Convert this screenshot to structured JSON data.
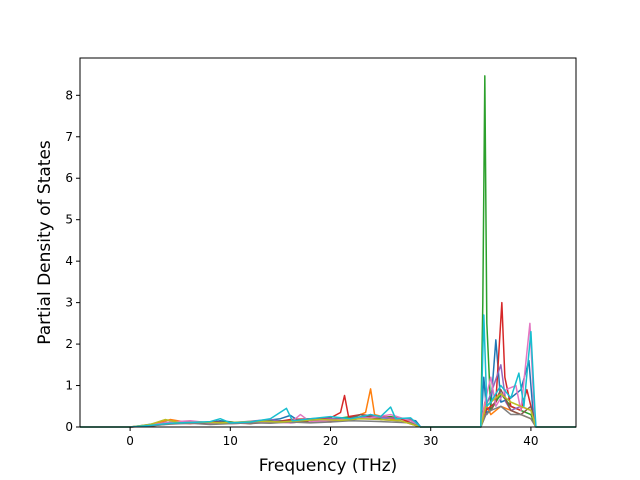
{
  "chart_data": {
    "type": "line",
    "title": "",
    "xlabel": "Frequency (THz)",
    "ylabel": "Partial Density of States",
    "xlim": [
      -5,
      44.5
    ],
    "ylim": [
      0,
      8.9
    ],
    "x_ticks": [
      0,
      10,
      20,
      30,
      40
    ],
    "y_ticks": [
      0,
      1,
      2,
      3,
      4,
      5,
      6,
      7,
      8
    ],
    "grid": false,
    "legend": "none",
    "series": [
      {
        "color": "#1f77b4",
        "points": [
          [
            -5,
            0
          ],
          [
            0,
            0
          ],
          [
            1,
            0.03
          ],
          [
            3,
            0.1
          ],
          [
            5,
            0.14
          ],
          [
            7,
            0.08
          ],
          [
            9,
            0.15
          ],
          [
            11,
            0.1
          ],
          [
            13,
            0.14
          ],
          [
            15,
            0.2
          ],
          [
            16,
            0.28
          ],
          [
            17,
            0.12
          ],
          [
            19,
            0.18
          ],
          [
            21,
            0.2
          ],
          [
            22,
            0.15
          ],
          [
            24,
            0.3
          ],
          [
            25,
            0.22
          ],
          [
            27,
            0.2
          ],
          [
            28.5,
            0.15
          ],
          [
            29,
            0
          ],
          [
            35,
            0
          ],
          [
            35.3,
            1.2
          ],
          [
            35.6,
            0.3
          ],
          [
            36,
            0.5
          ],
          [
            36.5,
            2.1
          ],
          [
            37,
            0.6
          ],
          [
            38,
            0.7
          ],
          [
            39,
            0.9
          ],
          [
            39.8,
            1.6
          ],
          [
            40.2,
            0.4
          ],
          [
            40.5,
            0
          ],
          [
            44.5,
            0
          ]
        ]
      },
      {
        "color": "#ff7f0e",
        "points": [
          [
            -5,
            0
          ],
          [
            0,
            0
          ],
          [
            2,
            0.05
          ],
          [
            4,
            0.18
          ],
          [
            6,
            0.1
          ],
          [
            8,
            0.12
          ],
          [
            10,
            0.08
          ],
          [
            12,
            0.1
          ],
          [
            14,
            0.15
          ],
          [
            16,
            0.1
          ],
          [
            18,
            0.15
          ],
          [
            20,
            0.12
          ],
          [
            22,
            0.2
          ],
          [
            23.5,
            0.35
          ],
          [
            24,
            0.92
          ],
          [
            24.4,
            0.3
          ],
          [
            26,
            0.2
          ],
          [
            28,
            0.18
          ],
          [
            29,
            0
          ],
          [
            35,
            0
          ],
          [
            35.4,
            0.6
          ],
          [
            36,
            0.3
          ],
          [
            37,
            0.5
          ],
          [
            38,
            0.4
          ],
          [
            39,
            0.3
          ],
          [
            40,
            0.2
          ],
          [
            40.5,
            0
          ],
          [
            44.5,
            0
          ]
        ]
      },
      {
        "color": "#2ca02c",
        "points": [
          [
            -5,
            0
          ],
          [
            0,
            0
          ],
          [
            2,
            0.04
          ],
          [
            4,
            0.12
          ],
          [
            6,
            0.09
          ],
          [
            8,
            0.1
          ],
          [
            10,
            0.12
          ],
          [
            12,
            0.08
          ],
          [
            14,
            0.16
          ],
          [
            16,
            0.14
          ],
          [
            18,
            0.2
          ],
          [
            20,
            0.18
          ],
          [
            22,
            0.25
          ],
          [
            24,
            0.2
          ],
          [
            26,
            0.25
          ],
          [
            28,
            0.15
          ],
          [
            29,
            0
          ],
          [
            35,
            0
          ],
          [
            35.2,
            3.0
          ],
          [
            35.4,
            8.47
          ],
          [
            35.6,
            2.5
          ],
          [
            36,
            0.4
          ],
          [
            37,
            0.8
          ],
          [
            38,
            0.5
          ],
          [
            39,
            0.4
          ],
          [
            40,
            0.3
          ],
          [
            40.5,
            0
          ],
          [
            44.5,
            0
          ]
        ]
      },
      {
        "color": "#d62728",
        "points": [
          [
            -5,
            0
          ],
          [
            0,
            0
          ],
          [
            2,
            0.03
          ],
          [
            4,
            0.1
          ],
          [
            6,
            0.08
          ],
          [
            8,
            0.12
          ],
          [
            10,
            0.1
          ],
          [
            12,
            0.12
          ],
          [
            14,
            0.1
          ],
          [
            16,
            0.18
          ],
          [
            18,
            0.2
          ],
          [
            20,
            0.22
          ],
          [
            21,
            0.35
          ],
          [
            21.4,
            0.76
          ],
          [
            21.8,
            0.25
          ],
          [
            23,
            0.3
          ],
          [
            25,
            0.25
          ],
          [
            27,
            0.2
          ],
          [
            29,
            0
          ],
          [
            35,
            0
          ],
          [
            35.5,
            0.4
          ],
          [
            36.5,
            0.6
          ],
          [
            37.1,
            3.0
          ],
          [
            37.4,
            1.2
          ],
          [
            38,
            0.5
          ],
          [
            39,
            0.4
          ],
          [
            39.6,
            0.9
          ],
          [
            40.2,
            0.3
          ],
          [
            40.5,
            0
          ],
          [
            44.5,
            0
          ]
        ]
      },
      {
        "color": "#9467bd",
        "points": [
          [
            -5,
            0
          ],
          [
            0,
            0
          ],
          [
            2,
            0.04
          ],
          [
            4,
            0.1
          ],
          [
            6,
            0.12
          ],
          [
            8,
            0.08
          ],
          [
            10,
            0.1
          ],
          [
            12,
            0.14
          ],
          [
            14,
            0.18
          ],
          [
            16,
            0.1
          ],
          [
            18,
            0.15
          ],
          [
            20,
            0.2
          ],
          [
            22,
            0.18
          ],
          [
            24,
            0.25
          ],
          [
            26,
            0.22
          ],
          [
            28,
            0.2
          ],
          [
            29,
            0
          ],
          [
            35,
            0
          ],
          [
            35.5,
            0.5
          ],
          [
            36,
            0.8
          ],
          [
            37,
            1.5
          ],
          [
            37.5,
            0.6
          ],
          [
            38,
            0.4
          ],
          [
            39,
            0.5
          ],
          [
            40,
            0.4
          ],
          [
            40.5,
            0
          ],
          [
            44.5,
            0
          ]
        ]
      },
      {
        "color": "#8c564b",
        "points": [
          [
            -5,
            0
          ],
          [
            0,
            0
          ],
          [
            2,
            0.02
          ],
          [
            4,
            0.08
          ],
          [
            6,
            0.1
          ],
          [
            8,
            0.07
          ],
          [
            10,
            0.1
          ],
          [
            12,
            0.08
          ],
          [
            14,
            0.12
          ],
          [
            16,
            0.15
          ],
          [
            18,
            0.12
          ],
          [
            20,
            0.15
          ],
          [
            22,
            0.22
          ],
          [
            23,
            0.3
          ],
          [
            25,
            0.18
          ],
          [
            27,
            0.15
          ],
          [
            29,
            0
          ],
          [
            35,
            0
          ],
          [
            35.5,
            0.3
          ],
          [
            36,
            0.4
          ],
          [
            37,
            0.9
          ],
          [
            38,
            0.4
          ],
          [
            39,
            0.3
          ],
          [
            40,
            0.5
          ],
          [
            40.5,
            0
          ],
          [
            44.5,
            0
          ]
        ]
      },
      {
        "color": "#e377c2",
        "points": [
          [
            -5,
            0
          ],
          [
            0,
            0
          ],
          [
            2,
            0.05
          ],
          [
            4,
            0.12
          ],
          [
            6,
            0.15
          ],
          [
            8,
            0.1
          ],
          [
            10,
            0.08
          ],
          [
            12,
            0.1
          ],
          [
            14,
            0.12
          ],
          [
            16,
            0.1
          ],
          [
            17,
            0.3
          ],
          [
            18,
            0.12
          ],
          [
            20,
            0.16
          ],
          [
            22,
            0.2
          ],
          [
            24,
            0.22
          ],
          [
            26,
            0.3
          ],
          [
            28,
            0.15
          ],
          [
            29,
            0
          ],
          [
            35,
            0
          ],
          [
            35.5,
            0.7
          ],
          [
            36,
            1.2
          ],
          [
            36.5,
            0.5
          ],
          [
            37.5,
            0.9
          ],
          [
            38.5,
            1.0
          ],
          [
            39,
            0.4
          ],
          [
            39.9,
            2.5
          ],
          [
            40.3,
            0.5
          ],
          [
            40.5,
            0
          ],
          [
            44.5,
            0
          ]
        ]
      },
      {
        "color": "#7f7f7f",
        "points": [
          [
            -5,
            0
          ],
          [
            0,
            0
          ],
          [
            2,
            0.03
          ],
          [
            4,
            0.07
          ],
          [
            6,
            0.09
          ],
          [
            8,
            0.06
          ],
          [
            10,
            0.08
          ],
          [
            12,
            0.1
          ],
          [
            14,
            0.09
          ],
          [
            16,
            0.12
          ],
          [
            18,
            0.1
          ],
          [
            20,
            0.12
          ],
          [
            22,
            0.15
          ],
          [
            24,
            0.14
          ],
          [
            26,
            0.12
          ],
          [
            28,
            0.1
          ],
          [
            29,
            0
          ],
          [
            35,
            0
          ],
          [
            35.5,
            0.3
          ],
          [
            36,
            0.4
          ],
          [
            37,
            0.5
          ],
          [
            38,
            0.3
          ],
          [
            39,
            0.3
          ],
          [
            40,
            0.2
          ],
          [
            40.5,
            0
          ],
          [
            44.5,
            0
          ]
        ]
      },
      {
        "color": "#bcbd22",
        "points": [
          [
            -5,
            0
          ],
          [
            0,
            0
          ],
          [
            2,
            0.06
          ],
          [
            3.5,
            0.18
          ],
          [
            5,
            0.1
          ],
          [
            7,
            0.12
          ],
          [
            9,
            0.1
          ],
          [
            11,
            0.12
          ],
          [
            13,
            0.14
          ],
          [
            15,
            0.12
          ],
          [
            17,
            0.15
          ],
          [
            19,
            0.18
          ],
          [
            21,
            0.16
          ],
          [
            23,
            0.2
          ],
          [
            25,
            0.18
          ],
          [
            27,
            0.15
          ],
          [
            29,
            0
          ],
          [
            35,
            0
          ],
          [
            35.5,
            0.5
          ],
          [
            36,
            0.6
          ],
          [
            37,
            0.8
          ],
          [
            38,
            0.6
          ],
          [
            39,
            0.5
          ],
          [
            40,
            0.4
          ],
          [
            40.5,
            0
          ],
          [
            44.5,
            0
          ]
        ]
      },
      {
        "color": "#17becf",
        "points": [
          [
            -5,
            0
          ],
          [
            0,
            0
          ],
          [
            2,
            0.04
          ],
          [
            4,
            0.09
          ],
          [
            6,
            0.11
          ],
          [
            8,
            0.13
          ],
          [
            9,
            0.2
          ],
          [
            10,
            0.1
          ],
          [
            12,
            0.12
          ],
          [
            14,
            0.2
          ],
          [
            15.6,
            0.45
          ],
          [
            16.2,
            0.15
          ],
          [
            18,
            0.2
          ],
          [
            20,
            0.25
          ],
          [
            22,
            0.2
          ],
          [
            24,
            0.3
          ],
          [
            25,
            0.25
          ],
          [
            26,
            0.48
          ],
          [
            26.5,
            0.2
          ],
          [
            28,
            0.22
          ],
          [
            29,
            0
          ],
          [
            35,
            0
          ],
          [
            35.3,
            2.7
          ],
          [
            35.6,
            0.5
          ],
          [
            36,
            0.6
          ],
          [
            37,
            1.0
          ],
          [
            38,
            0.7
          ],
          [
            38.8,
            1.3
          ],
          [
            39.3,
            0.5
          ],
          [
            40,
            2.3
          ],
          [
            40.4,
            0.4
          ],
          [
            40.5,
            0
          ],
          [
            44.5,
            0
          ]
        ]
      }
    ]
  }
}
